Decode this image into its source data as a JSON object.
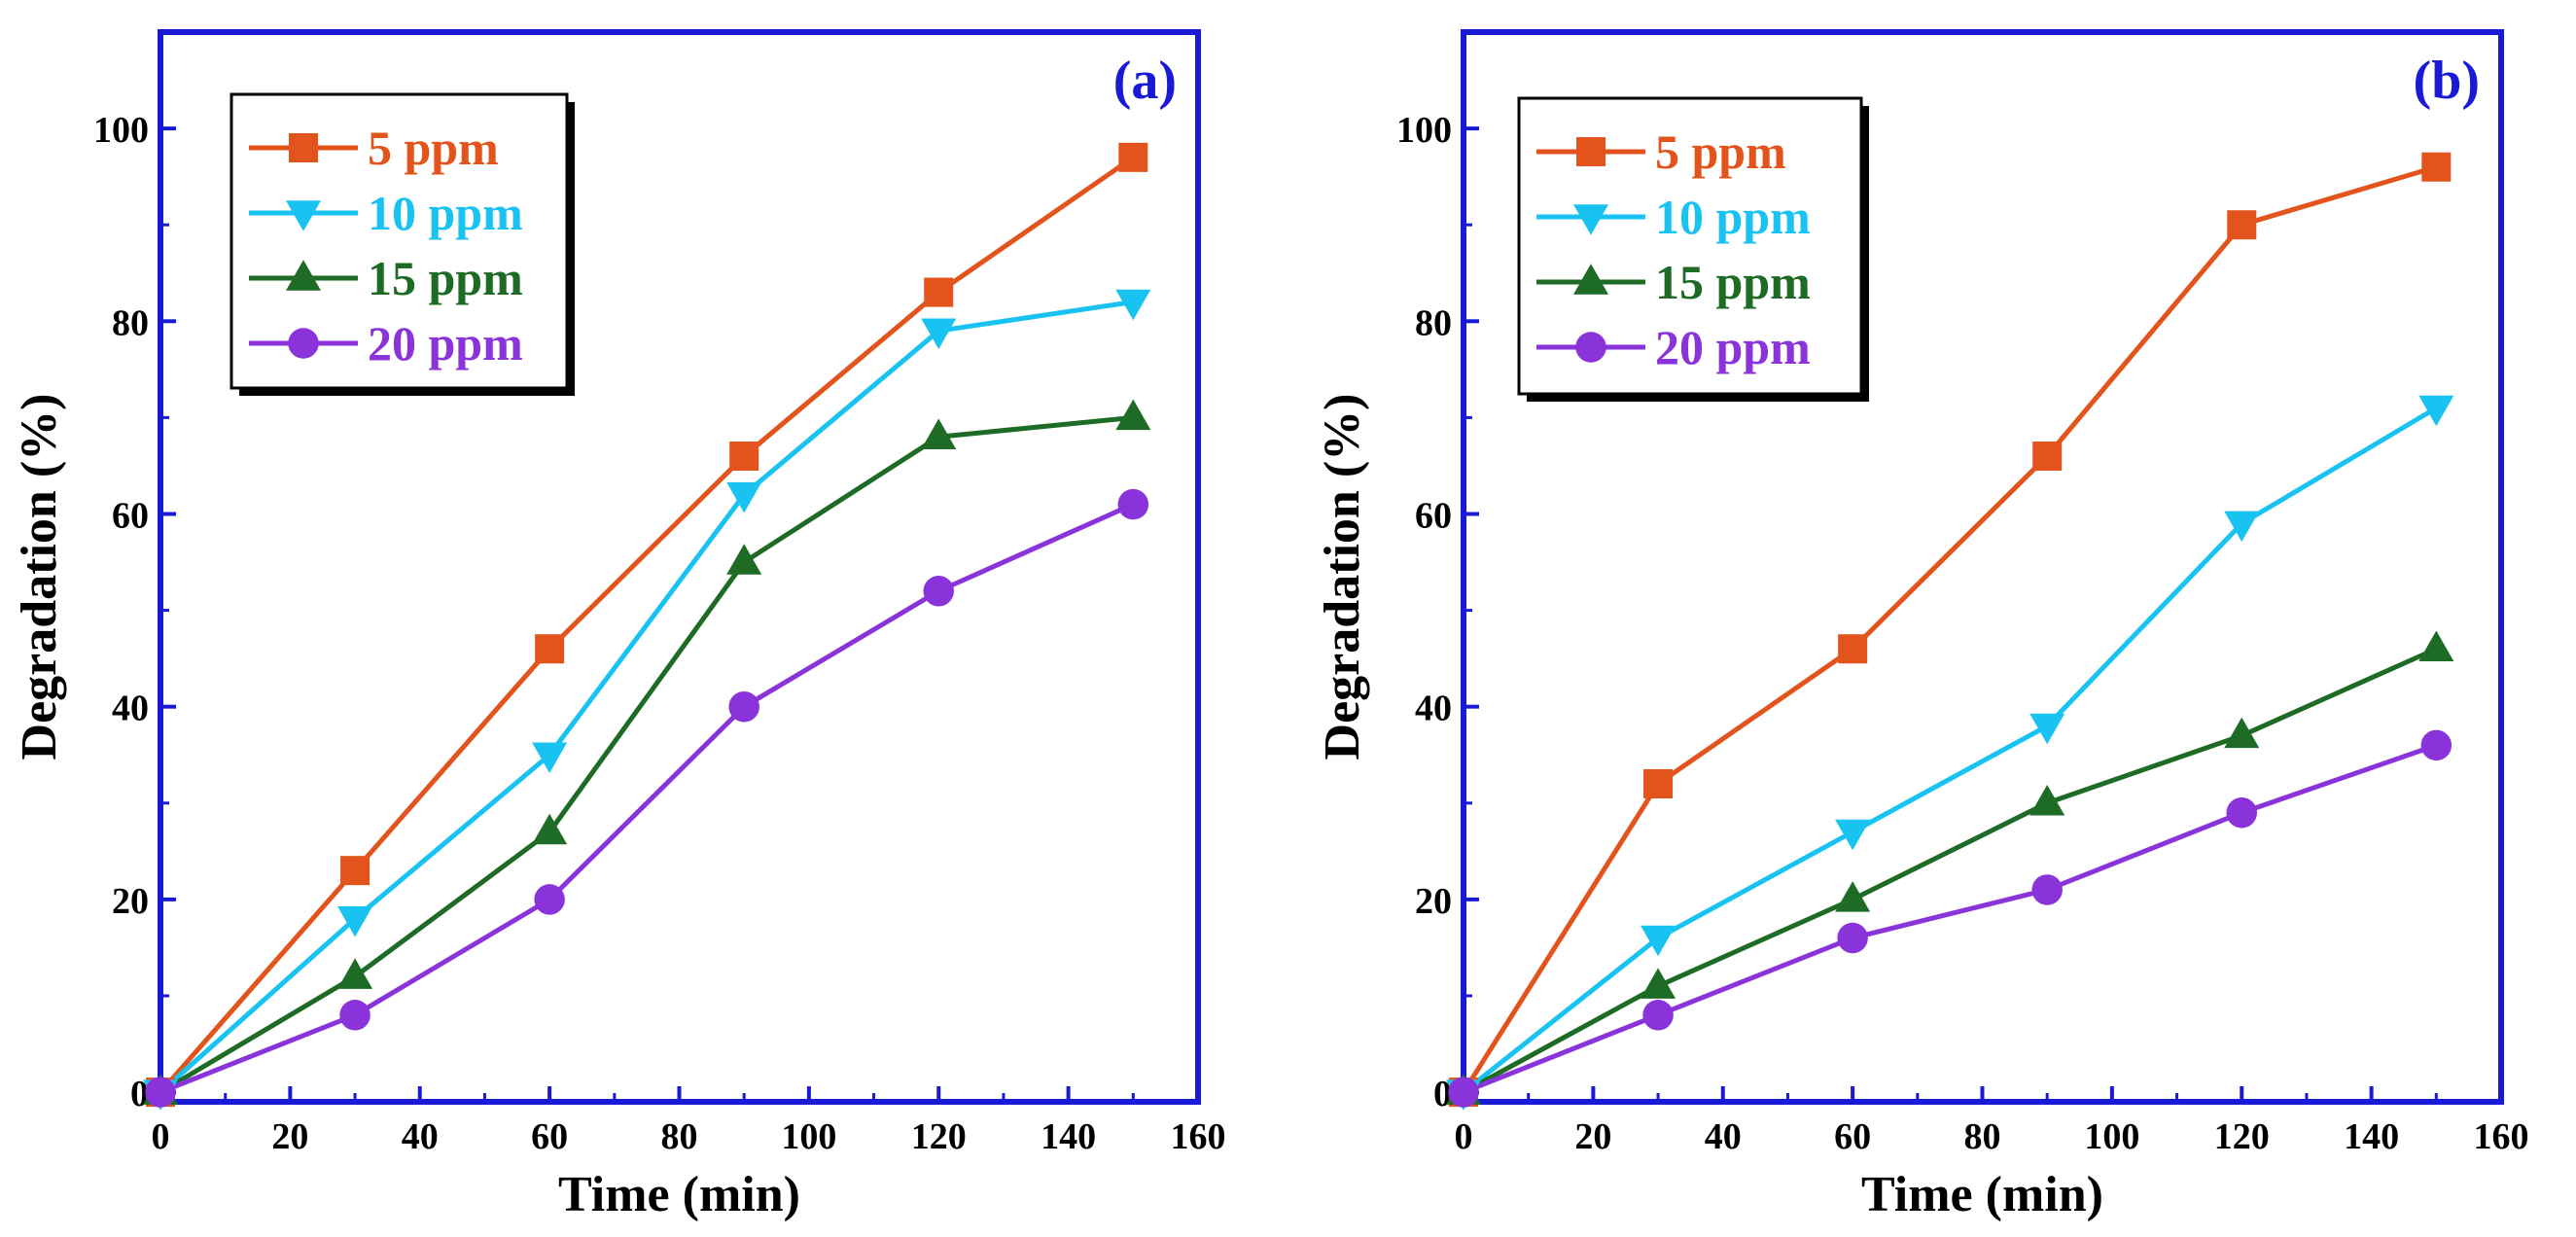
{
  "colors": {
    "frame": "#1a1ad6",
    "text": "#000000"
  },
  "chart_data": [
    {
      "type": "line",
      "panel_label": "(a)",
      "xlabel": "Time (min)",
      "ylabel": "Degradation (%)",
      "xlim": [
        0,
        160
      ],
      "ylim": [
        -1,
        110
      ],
      "xticks": [
        "0",
        "20",
        "40",
        "60",
        "80",
        "100",
        "120",
        "140",
        "160"
      ],
      "yticks": [
        "0",
        "20",
        "40",
        "60",
        "80",
        "100"
      ],
      "legend_position": "top-left",
      "x": [
        0,
        30,
        60,
        90,
        120,
        150
      ],
      "series": [
        {
          "name": "5 ppm",
          "color": "#e2541c",
          "marker": "square",
          "values": [
            0,
            23,
            46,
            66,
            83,
            97
          ]
        },
        {
          "name": "10 ppm",
          "color": "#18c3f2",
          "marker": "triangle-down",
          "values": [
            0,
            18,
            35,
            62,
            79,
            82
          ]
        },
        {
          "name": "15 ppm",
          "color": "#1d6b24",
          "marker": "triangle-up",
          "values": [
            0,
            12,
            27,
            55,
            68,
            70
          ]
        },
        {
          "name": "20 ppm",
          "color": "#8a33db",
          "marker": "circle",
          "values": [
            0,
            8,
            20,
            40,
            52,
            61
          ]
        }
      ]
    },
    {
      "type": "line",
      "panel_label": "(b)",
      "xlabel": "Time (min)",
      "ylabel": "Degradation (%)",
      "xlim": [
        0,
        160
      ],
      "ylim": [
        -1,
        110
      ],
      "xticks": [
        "0",
        "20",
        "40",
        "60",
        "80",
        "100",
        "120",
        "140",
        "160"
      ],
      "yticks": [
        "0",
        "20",
        "40",
        "60",
        "80",
        "100"
      ],
      "legend_position": "top-left",
      "x": [
        0,
        30,
        60,
        90,
        120,
        150
      ],
      "series": [
        {
          "name": "5 ppm",
          "color": "#e2541c",
          "marker": "square",
          "values": [
            0,
            32,
            46,
            66,
            90,
            96
          ]
        },
        {
          "name": "10 ppm",
          "color": "#18c3f2",
          "marker": "triangle-down",
          "values": [
            0,
            16,
            27,
            38,
            59,
            71
          ]
        },
        {
          "name": "15 ppm",
          "color": "#1d6b24",
          "marker": "triangle-up",
          "values": [
            0,
            11,
            20,
            30,
            37,
            46
          ]
        },
        {
          "name": "20 ppm",
          "color": "#8a33db",
          "marker": "circle",
          "values": [
            0,
            8,
            16,
            21,
            29,
            36
          ]
        }
      ]
    }
  ]
}
